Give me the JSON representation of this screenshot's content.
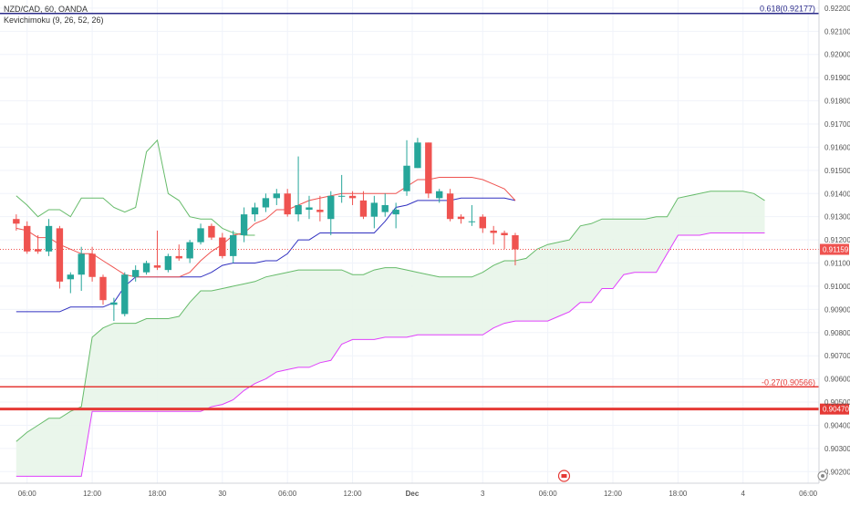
{
  "legend": {
    "symbol_line": "NZD/CAD, 60, OANDA",
    "indicator_line": "Kevichimoku (9, 26, 52, 26)"
  },
  "colors": {
    "bull": "#26a69a",
    "bear": "#ef5350",
    "tenkan": "#ef5350",
    "kijun": "#3030c0",
    "chikou": "#66bb6a",
    "senkou_a": "#66bb6a",
    "senkou_b": "#e040fb",
    "cloud": "#e8f5e9",
    "fib_blue": "#2a2a8a",
    "fib_red": "#e53935",
    "price_line": "#ef5350",
    "grid": "#f0f3fa",
    "axis_text": "#555555"
  },
  "chart_data": {
    "type": "candlestick",
    "y_ticks": [
      "0.92200",
      "0.92100",
      "0.92000",
      "0.91900",
      "0.91800",
      "0.91700",
      "0.91600",
      "0.91500",
      "0.91400",
      "0.91300",
      "0.91200",
      "0.91100",
      "0.91000",
      "0.90900",
      "0.90800",
      "0.90700",
      "0.90600",
      "0.90500",
      "0.90400",
      "0.90300",
      "0.90200"
    ],
    "y_tick_values": [
      0.922,
      0.921,
      0.92,
      0.919,
      0.918,
      0.917,
      0.916,
      0.915,
      0.914,
      0.913,
      0.912,
      0.911,
      0.91,
      0.909,
      0.908,
      0.907,
      0.906,
      0.905,
      0.904,
      0.903,
      0.902
    ],
    "ylim": [
      0.9015,
      0.92235
    ],
    "x_ticks": [
      {
        "label": "06:00",
        "bar": 1
      },
      {
        "label": "12:00",
        "bar": 7
      },
      {
        "label": "18:00",
        "bar": 13
      },
      {
        "label": "30",
        "bar": 19
      },
      {
        "label": "06:00",
        "bar": 25
      },
      {
        "label": "12:00",
        "bar": 31
      },
      {
        "label": "Dec",
        "bar": 36.5
      },
      {
        "label": "3",
        "bar": 43
      },
      {
        "label": "06:00",
        "bar": 49
      },
      {
        "label": "12:00",
        "bar": 55
      },
      {
        "label": "18:00",
        "bar": 61
      },
      {
        "label": "4",
        "bar": 67
      },
      {
        "label": "06:00",
        "bar": 73
      }
    ],
    "bar_range": [
      -1.5,
      74
    ],
    "candles": [
      {
        "o": 0.9129,
        "h": 0.9131,
        "l": 0.9124,
        "c": 0.9127
      },
      {
        "o": 0.9126,
        "h": 0.9128,
        "l": 0.9114,
        "c": 0.9115
      },
      {
        "o": 0.9116,
        "h": 0.9122,
        "l": 0.9114,
        "c": 0.9115
      },
      {
        "o": 0.9115,
        "h": 0.9129,
        "l": 0.9113,
        "c": 0.9126
      },
      {
        "o": 0.9125,
        "h": 0.9126,
        "l": 0.9099,
        "c": 0.9102
      },
      {
        "o": 0.9103,
        "h": 0.9106,
        "l": 0.9097,
        "c": 0.9105
      },
      {
        "o": 0.9105,
        "h": 0.9117,
        "l": 0.9098,
        "c": 0.9114
      },
      {
        "o": 0.9114,
        "h": 0.9117,
        "l": 0.9102,
        "c": 0.9104
      },
      {
        "o": 0.9104,
        "h": 0.9105,
        "l": 0.9092,
        "c": 0.9094
      },
      {
        "o": 0.9092,
        "h": 0.9095,
        "l": 0.9085,
        "c": 0.9093
      },
      {
        "o": 0.9088,
        "h": 0.9106,
        "l": 0.9087,
        "c": 0.9105
      },
      {
        "o": 0.9104,
        "h": 0.9109,
        "l": 0.9102,
        "c": 0.9107
      },
      {
        "o": 0.9106,
        "h": 0.9111,
        "l": 0.9105,
        "c": 0.911
      },
      {
        "o": 0.9109,
        "h": 0.9124,
        "l": 0.9107,
        "c": 0.9108
      },
      {
        "o": 0.9107,
        "h": 0.9114,
        "l": 0.9106,
        "c": 0.9113
      },
      {
        "o": 0.9113,
        "h": 0.9118,
        "l": 0.9111,
        "c": 0.9112
      },
      {
        "o": 0.9112,
        "h": 0.912,
        "l": 0.911,
        "c": 0.9119
      },
      {
        "o": 0.9119,
        "h": 0.9127,
        "l": 0.9118,
        "c": 0.9125
      },
      {
        "o": 0.9126,
        "h": 0.9127,
        "l": 0.912,
        "c": 0.9121
      },
      {
        "o": 0.9121,
        "h": 0.9123,
        "l": 0.9112,
        "c": 0.9113
      },
      {
        "o": 0.9113,
        "h": 0.9124,
        "l": 0.911,
        "c": 0.9122
      },
      {
        "o": 0.9122,
        "h": 0.9134,
        "l": 0.9119,
        "c": 0.9131
      },
      {
        "o": 0.9131,
        "h": 0.9136,
        "l": 0.9128,
        "c": 0.9134
      },
      {
        "o": 0.9134,
        "h": 0.914,
        "l": 0.9132,
        "c": 0.9138
      },
      {
        "o": 0.9138,
        "h": 0.9142,
        "l": 0.9135,
        "c": 0.914
      },
      {
        "o": 0.914,
        "h": 0.9142,
        "l": 0.913,
        "c": 0.9131
      },
      {
        "o": 0.9131,
        "h": 0.9156,
        "l": 0.9128,
        "c": 0.9135
      },
      {
        "o": 0.9133,
        "h": 0.9139,
        "l": 0.9129,
        "c": 0.9134
      },
      {
        "o": 0.9133,
        "h": 0.9139,
        "l": 0.9128,
        "c": 0.9132
      },
      {
        "o": 0.9129,
        "h": 0.9141,
        "l": 0.9122,
        "c": 0.9139
      },
      {
        "o": 0.9139,
        "h": 0.9148,
        "l": 0.9136,
        "c": 0.9139
      },
      {
        "o": 0.9139,
        "h": 0.9141,
        "l": 0.9135,
        "c": 0.9138
      },
      {
        "o": 0.9137,
        "h": 0.9141,
        "l": 0.9129,
        "c": 0.913
      },
      {
        "o": 0.913,
        "h": 0.9139,
        "l": 0.9125,
        "c": 0.9136
      },
      {
        "o": 0.9132,
        "h": 0.914,
        "l": 0.913,
        "c": 0.9135
      },
      {
        "o": 0.9131,
        "h": 0.9136,
        "l": 0.9125,
        "c": 0.9133
      },
      {
        "o": 0.9141,
        "h": 0.9163,
        "l": 0.9139,
        "c": 0.9152
      },
      {
        "o": 0.9151,
        "h": 0.9164,
        "l": 0.9151,
        "c": 0.9162
      },
      {
        "o": 0.9162,
        "h": 0.9162,
        "l": 0.9138,
        "c": 0.914
      },
      {
        "o": 0.9138,
        "h": 0.9142,
        "l": 0.9136,
        "c": 0.9141
      },
      {
        "o": 0.914,
        "h": 0.9142,
        "l": 0.9128,
        "c": 0.9129
      },
      {
        "o": 0.913,
        "h": 0.9131,
        "l": 0.9127,
        "c": 0.9129
      },
      {
        "o": 0.9128,
        "h": 0.9135,
        "l": 0.9126,
        "c": 0.9128
      },
      {
        "o": 0.913,
        "h": 0.9131,
        "l": 0.9123,
        "c": 0.9125
      },
      {
        "o": 0.9124,
        "h": 0.9126,
        "l": 0.9118,
        "c": 0.9123
      },
      {
        "o": 0.9123,
        "h": 0.9124,
        "l": 0.9116,
        "c": 0.9122
      },
      {
        "o": 0.9122,
        "h": 0.9123,
        "l": 0.9109,
        "c": 0.91159
      }
    ],
    "tenkan": {
      "start": 0,
      "values": [
        0.9125,
        0.9124,
        0.9121,
        0.9121,
        0.9118,
        0.9116,
        0.9114,
        0.9114,
        0.9111,
        0.9108,
        0.9105,
        0.9104,
        0.9104,
        0.9104,
        0.9104,
        0.9104,
        0.9106,
        0.9111,
        0.9115,
        0.9118,
        0.9122,
        0.9123,
        0.9127,
        0.9129,
        0.9133,
        0.9133,
        0.9135,
        0.9137,
        0.9138,
        0.9139,
        0.914,
        0.914,
        0.914,
        0.914,
        0.914,
        0.914,
        0.9143,
        0.9146,
        0.9146,
        0.9147,
        0.9147,
        0.9147,
        0.9147,
        0.9146,
        0.9144,
        0.9142,
        0.9137
      ]
    },
    "kijun": {
      "start": 0,
      "values": [
        0.9089,
        0.9089,
        0.9089,
        0.9089,
        0.9089,
        0.9091,
        0.9091,
        0.9091,
        0.9091,
        0.9093,
        0.91,
        0.9104,
        0.9104,
        0.9104,
        0.9104,
        0.9104,
        0.9104,
        0.9104,
        0.9106,
        0.9109,
        0.911,
        0.911,
        0.911,
        0.9111,
        0.9111,
        0.9114,
        0.912,
        0.912,
        0.9123,
        0.9123,
        0.9123,
        0.9123,
        0.9123,
        0.9123,
        0.9128,
        0.9134,
        0.9135,
        0.9137,
        0.9137,
        0.9137,
        0.9137,
        0.9138,
        0.9138,
        0.9138,
        0.9138,
        0.9138,
        0.9137
      ]
    },
    "chikou": {
      "start": 0,
      "values": [
        0.9139,
        0.9135,
        0.913,
        0.9133,
        0.9133,
        0.913,
        0.9138,
        0.9138,
        0.9138,
        0.9134,
        0.9132,
        0.9134,
        0.9158,
        0.9163,
        0.914,
        0.9137,
        0.913,
        0.9129,
        0.9129,
        0.9125,
        0.9123,
        0.9122,
        0.9122
      ]
    },
    "senkou_a": {
      "start": 0,
      "values": [
        0.9033,
        0.9037,
        0.904,
        0.9043,
        0.9043,
        0.9046,
        0.9048,
        0.9078,
        0.9082,
        0.9084,
        0.9084,
        0.9084,
        0.9086,
        0.9086,
        0.9086,
        0.9087,
        0.9093,
        0.9098,
        0.9098,
        0.9099,
        0.91,
        0.9101,
        0.9102,
        0.9104,
        0.9105,
        0.9106,
        0.9107,
        0.9107,
        0.9107,
        0.9107,
        0.9107,
        0.9105,
        0.9105,
        0.9107,
        0.9108,
        0.9108,
        0.9107,
        0.9106,
        0.9105,
        0.9104,
        0.9104,
        0.9104,
        0.9104,
        0.9106,
        0.9109,
        0.9111,
        0.9111,
        0.9112,
        0.9116,
        0.9118,
        0.9119,
        0.912,
        0.9126,
        0.9127,
        0.9129,
        0.9129,
        0.9129,
        0.9129,
        0.9129,
        0.913,
        0.913,
        0.9138,
        0.9139,
        0.914,
        0.9141,
        0.9141,
        0.9141,
        0.9141,
        0.914,
        0.9137
      ]
    },
    "senkou_b": {
      "start": 0,
      "values": [
        0.9018,
        0.9018,
        0.9018,
        0.9018,
        0.9018,
        0.9018,
        0.9018,
        0.9046,
        0.9046,
        0.9046,
        0.9046,
        0.9046,
        0.9046,
        0.9046,
        0.9046,
        0.9046,
        0.9046,
        0.9046,
        0.9048,
        0.9049,
        0.9051,
        0.9055,
        0.9058,
        0.906,
        0.9063,
        0.9064,
        0.9065,
        0.9065,
        0.9067,
        0.9068,
        0.9075,
        0.9077,
        0.9077,
        0.9077,
        0.9078,
        0.9078,
        0.9078,
        0.9079,
        0.9079,
        0.9079,
        0.9079,
        0.9079,
        0.9079,
        0.9079,
        0.9082,
        0.9084,
        0.9085,
        0.9085,
        0.9085,
        0.9085,
        0.9087,
        0.9089,
        0.9093,
        0.9093,
        0.9099,
        0.9099,
        0.9105,
        0.9106,
        0.9106,
        0.9106,
        0.9114,
        0.9122,
        0.9122,
        0.9122,
        0.9123,
        0.9123,
        0.9123,
        0.9123,
        0.9123,
        0.9123
      ]
    },
    "fib_levels": [
      {
        "label": "0.618(0.92177)",
        "value": 0.92177,
        "color": "#2a2a8a"
      },
      {
        "label": "-0.27(0.90566)",
        "value": 0.90566,
        "color": "#e53935"
      }
    ],
    "horizontal_line": {
      "value": 0.9047,
      "label": "0.90470"
    },
    "last_price": {
      "value": 0.91159,
      "label": "0.91159"
    }
  }
}
